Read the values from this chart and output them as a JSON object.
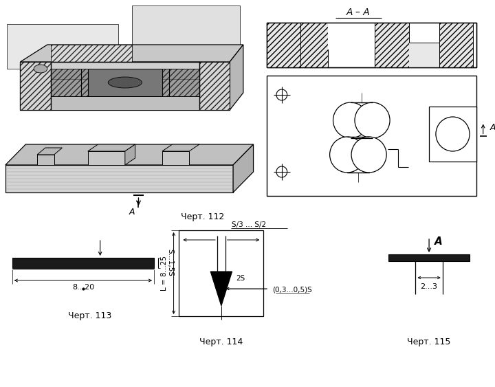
{
  "bg_color": "#ffffff",
  "title_112": "Черт. 112",
  "title_113": "Черт. 113",
  "title_114": "Черт. 114",
  "title_115": "Черт. 115",
  "section_label": "A–A",
  "label_A": "A",
  "dim_113_horiz": "8...20",
  "dim_113_vert": "S...1,5S",
  "dim_114_L": "L = 8...25",
  "dim_114_2S": "2S",
  "dim_114_top": "S/3 ... S/2",
  "dim_114_bot": "(0,3...0,5)S",
  "dim_115_horiz": "2...3",
  "lc": "#000000",
  "hatch_fc": "#e8e8e8",
  "gray_light": "#d4d4d4",
  "gray_mid": "#aaaaaa",
  "gray_dark": "#777777",
  "dot_fc": "#cccccc"
}
